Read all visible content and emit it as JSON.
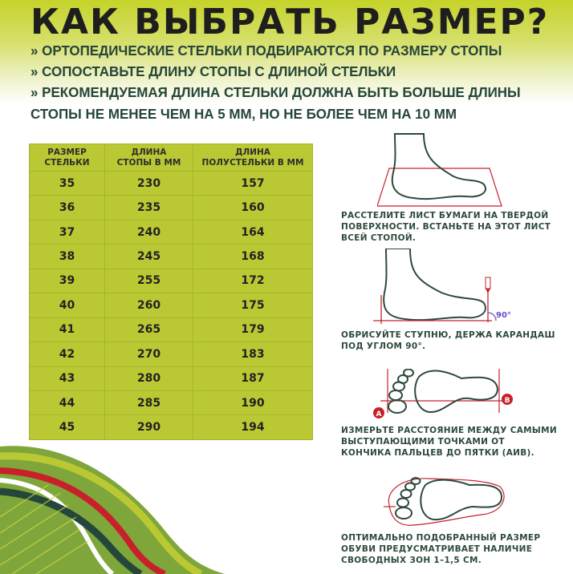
{
  "title": "КАК ВЫБРАТЬ РАЗМЕР?",
  "bullets": [
    "» ОРТОПЕДИЧЕСКИЕ СТЕЛЬКИ ПОДБИРАЮТСЯ ПО РАЗМЕРУ СТОПЫ",
    "» СОПОСТАВЬТЕ ДЛИНУ СТОПЫ С ДЛИНОЙ СТЕЛЬКИ",
    "» РЕКОМЕНДУЕМАЯ ДЛИНА СТЕЛЬКИ ДОЛЖНА БЫТЬ БОЛЬШЕ ДЛИНЫ",
    "СТОПЫ НЕ МЕНЕЕ ЧЕМ НА 5 ММ, НО НЕ БОЛЕЕ ЧЕМ НА 10 ММ"
  ],
  "table": {
    "headers": [
      [
        "РАЗМЕР",
        "СТЕЛЬКИ"
      ],
      [
        "ДЛИНА",
        "СТОПЫ В ММ"
      ],
      [
        "ДЛИНА",
        "ПОЛУСТЕЛЬКИ В ММ"
      ]
    ],
    "rows": [
      [
        "35",
        "230",
        "157"
      ],
      [
        "36",
        "235",
        "160"
      ],
      [
        "37",
        "240",
        "164"
      ],
      [
        "38",
        "245",
        "168"
      ],
      [
        "39",
        "255",
        "172"
      ],
      [
        "40",
        "260",
        "175"
      ],
      [
        "41",
        "265",
        "179"
      ],
      [
        "42",
        "270",
        "183"
      ],
      [
        "43",
        "280",
        "187"
      ],
      [
        "44",
        "285",
        "190"
      ],
      [
        "45",
        "290",
        "194"
      ]
    ]
  },
  "steps": [
    {
      "icon": "foot-on-paper",
      "lines": [
        "РАССТЕЛИТЕ ЛИСТ БУМАГИ НА ТВЕРДОЙ",
        "ПОВЕРХНОСТИ. ВСТАНЬТЕ НА ЭТОТ ЛИСТ",
        "ВСЕЙ СТОПОЙ."
      ]
    },
    {
      "icon": "foot-trace-pencil",
      "angle_label": "90°",
      "lines": [
        "ОБРИСУЙТЕ СТУПНЮ, ДЕРЖА КАРАНДАШ",
        "ПОД УГЛОМ 90°."
      ]
    },
    {
      "icon": "footprint-measure",
      "point_a": "A",
      "point_b": "B",
      "lines": [
        "ИЗМЕРЬТЕ РАССТОЯНИЕ МЕЖДУ САМЫМИ",
        "ВЫСТУПАЮЩИМИ ТОЧКАМИ ОТ",
        "КОНЧИКА ПАЛЬЦЕВ ДО ПЯТКИ (АИВ)."
      ]
    },
    {
      "icon": "footprint-in-shoe",
      "lines": [
        "ОПТИМАЛЬНО ПОДОБРАННЫЙ РАЗМЕР",
        "ОБУВИ ПРЕДУСМАТРИВАЕТ НАЛИЧИЕ",
        "СВОБОДНЫХ ЗОН 1–1,5 СМ."
      ]
    }
  ],
  "colors": {
    "accent": "#bac933",
    "dark_green": "#25463a",
    "red": "#c8202a"
  }
}
